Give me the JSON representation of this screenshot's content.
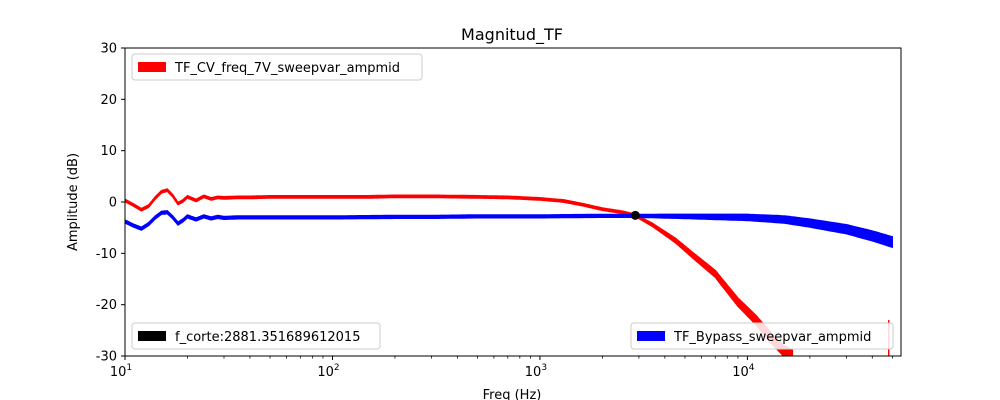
{
  "chart_data": {
    "type": "line",
    "title": "Magnitud_TF",
    "xlabel": "Freq (Hz)",
    "ylabel": "Amplitude (dB)",
    "xscale": "log",
    "xlim": [
      10,
      55000
    ],
    "ylim": [
      -30,
      30
    ],
    "yticks": [
      -30,
      -20,
      -10,
      0,
      10,
      20,
      30
    ],
    "xticks": [
      {
        "value": 10,
        "base": "10",
        "exp": "1"
      },
      {
        "value": 100,
        "base": "10",
        "exp": "2"
      },
      {
        "value": 1000,
        "base": "10",
        "exp": "3"
      },
      {
        "value": 10000,
        "base": "10",
        "exp": "4"
      }
    ],
    "series": [
      {
        "name": "TF_CV_freq_7V_sweepvar_ampmid",
        "color": "#ff0000",
        "x": [
          10,
          11,
          12,
          13,
          14,
          15,
          16,
          17,
          18,
          19,
          20,
          22,
          24,
          26,
          28,
          30,
          35,
          40,
          50,
          70,
          100,
          150,
          200,
          300,
          500,
          700,
          1000,
          1300,
          1600,
          2000,
          2500,
          2881,
          3500,
          4500,
          5500,
          7000,
          9000,
          11000,
          13000,
          15000,
          16500
        ],
        "values": [
          0.3,
          -0.6,
          -1.5,
          -0.8,
          0.8,
          2.0,
          2.3,
          1.2,
          -0.3,
          0.2,
          1.0,
          0.3,
          1.1,
          0.6,
          0.9,
          0.8,
          0.9,
          0.9,
          1.0,
          1.0,
          1.0,
          1.0,
          1.1,
          1.1,
          1.0,
          0.9,
          0.6,
          0.2,
          -0.5,
          -1.4,
          -2.0,
          -2.6,
          -4.5,
          -7.5,
          -10.5,
          -14.0,
          -19.5,
          -23.0,
          -26.5,
          -29.0,
          -30.0
        ],
        "band": 0.5
      },
      {
        "name": "TF_Bypass_sweepvar_ampmid",
        "color": "#0000ff",
        "x": [
          10,
          11,
          12,
          13,
          14,
          15,
          16,
          17,
          18,
          19,
          20,
          22,
          24,
          26,
          28,
          30,
          35,
          40,
          50,
          70,
          100,
          200,
          300,
          500,
          700,
          1000,
          2000,
          3000,
          5000,
          7000,
          10000,
          15000,
          20000,
          30000,
          40000,
          50000
        ],
        "values": [
          -3.8,
          -4.6,
          -5.2,
          -4.3,
          -3.0,
          -2.1,
          -2.0,
          -3.0,
          -4.2,
          -3.6,
          -2.8,
          -3.4,
          -2.8,
          -3.2,
          -2.9,
          -3.1,
          -3.0,
          -3.0,
          -3.0,
          -3.0,
          -3.0,
          -2.9,
          -2.9,
          -2.8,
          -2.8,
          -2.8,
          -2.7,
          -2.7,
          -2.8,
          -2.9,
          -3.0,
          -3.4,
          -4.1,
          -5.3,
          -6.6,
          -7.8
        ],
        "band": 0.6
      }
    ],
    "cutoff_point": {
      "x": 2881.351689612015,
      "y": -2.6,
      "color": "#000000"
    },
    "legends": [
      {
        "label": "TF_CV_freq_7V_sweepvar_ampmid",
        "color": "#ff0000",
        "placement": "upper left"
      },
      {
        "label": "f_corte:2881.351689612015",
        "color": "#000000",
        "placement": "lower left"
      },
      {
        "label": "TF_Bypass_sweepvar_ampmid",
        "color": "#0000ff",
        "placement": "lower right"
      }
    ]
  }
}
